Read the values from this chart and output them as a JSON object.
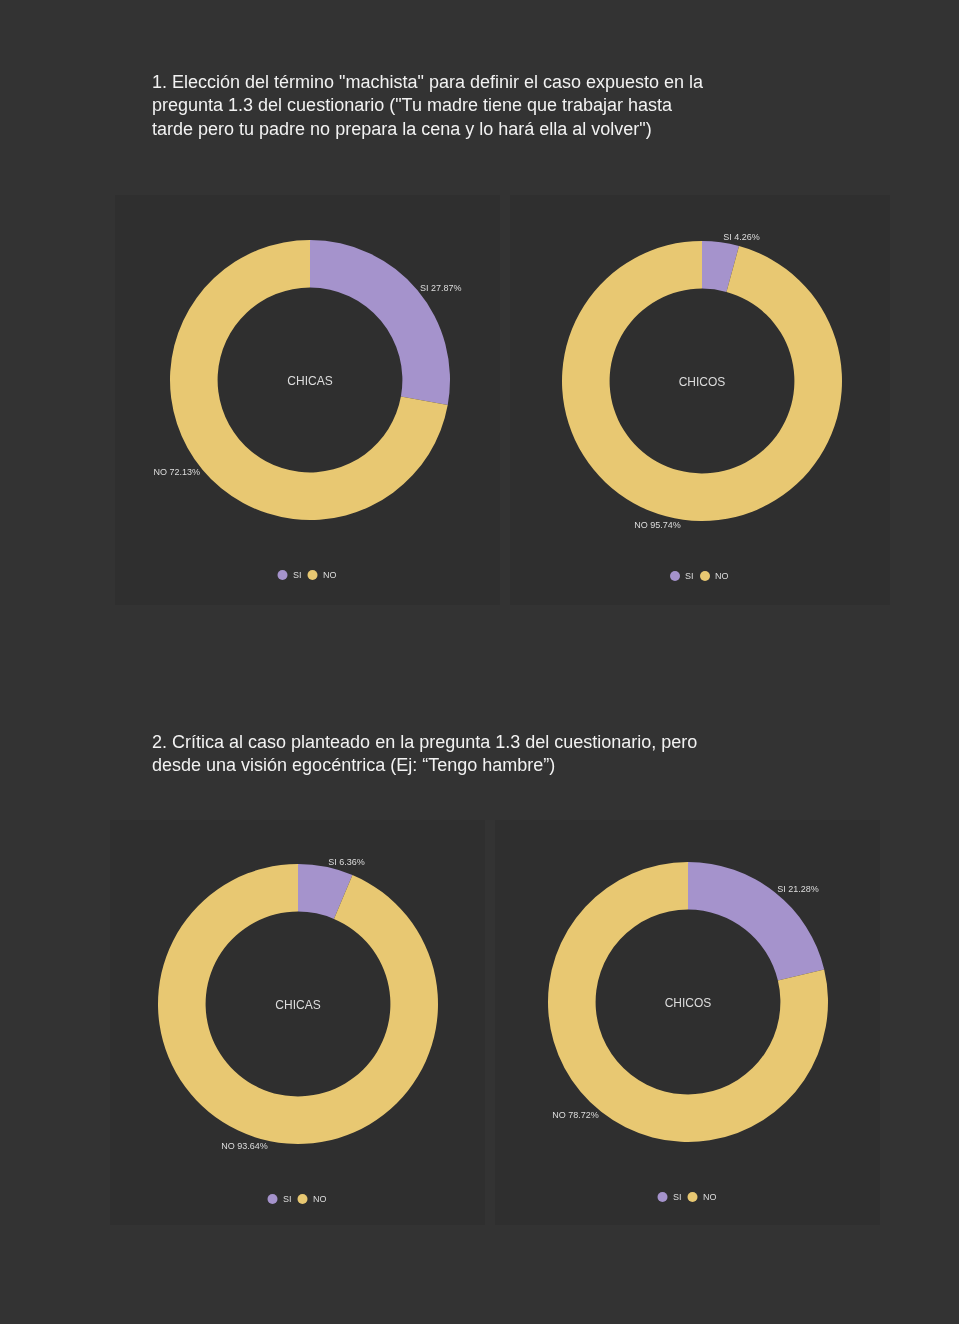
{
  "chart_data": [
    {
      "type": "donut",
      "title": "CHICAS",
      "annotations": [
        "1. Elección del término \"machista\" para definir el caso expuesto en la pregunta 1.3 del cuestionario (\"Tu madre tiene que trabajar hasta tarde pero tu padre no prepara la cena y lo hará ella al volver\")"
      ],
      "categories": [
        "SI",
        "NO"
      ],
      "values": [
        27.87,
        72.13
      ],
      "colors": [
        "#a593cc",
        "#e8c872"
      ],
      "value_labels": [
        "SI 27.87%",
        "NO 72.13%"
      ],
      "legend": "bottom"
    },
    {
      "type": "donut",
      "title": "CHICOS",
      "categories": [
        "SI",
        "NO"
      ],
      "values": [
        4.26,
        95.74
      ],
      "colors": [
        "#a593cc",
        "#e8c872"
      ],
      "value_labels": [
        "SI 4.26%",
        "NO 95.74%"
      ],
      "legend": "bottom"
    },
    {
      "type": "donut",
      "title": "CHICAS",
      "annotations": [
        "2. Crítica al caso planteado en la pregunta 1.3 del cuestionario, pero desde una visión egocéntrica (Ej: “Tengo hambre”)"
      ],
      "categories": [
        "SI",
        "NO"
      ],
      "values": [
        6.36,
        93.64
      ],
      "colors": [
        "#a593cc",
        "#e8c872"
      ],
      "value_labels": [
        "SI 6.36%",
        "NO 93.64%"
      ],
      "legend": "bottom"
    },
    {
      "type": "donut",
      "title": "CHICOS",
      "categories": [
        "SI",
        "NO"
      ],
      "values": [
        21.28,
        78.72
      ],
      "colors": [
        "#a593cc",
        "#e8c872"
      ],
      "value_labels": [
        "SI 21.28%",
        "NO 78.72%"
      ],
      "legend": "bottom"
    }
  ]
}
